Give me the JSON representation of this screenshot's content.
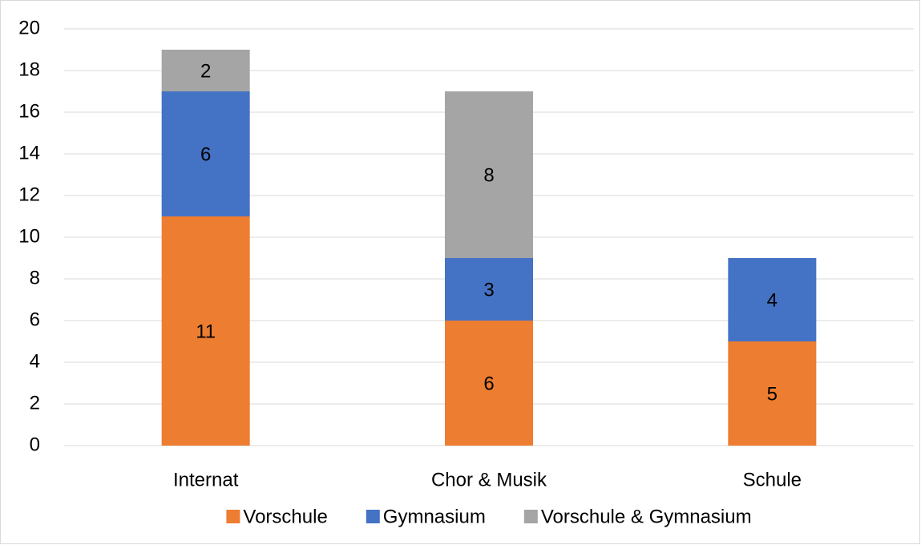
{
  "chart_data": {
    "type": "stacked_bar",
    "categories": [
      "Internat",
      "Chor & Musik",
      "Schule"
    ],
    "series": [
      {
        "name": "Vorschule",
        "color": "#ed7d31",
        "values": [
          11,
          6,
          5
        ]
      },
      {
        "name": "Gymnasium",
        "color": "#4472c4",
        "values": [
          6,
          3,
          4
        ]
      },
      {
        "name": "Vorschule & Gymnasium",
        "color": "#a5a5a5",
        "values": [
          2,
          8,
          null
        ]
      }
    ],
    "ylim": [
      0,
      20
    ],
    "yticks": [
      0,
      2,
      4,
      6,
      8,
      10,
      12,
      14,
      16,
      18,
      20
    ],
    "grid": true,
    "legend": "bottom"
  }
}
